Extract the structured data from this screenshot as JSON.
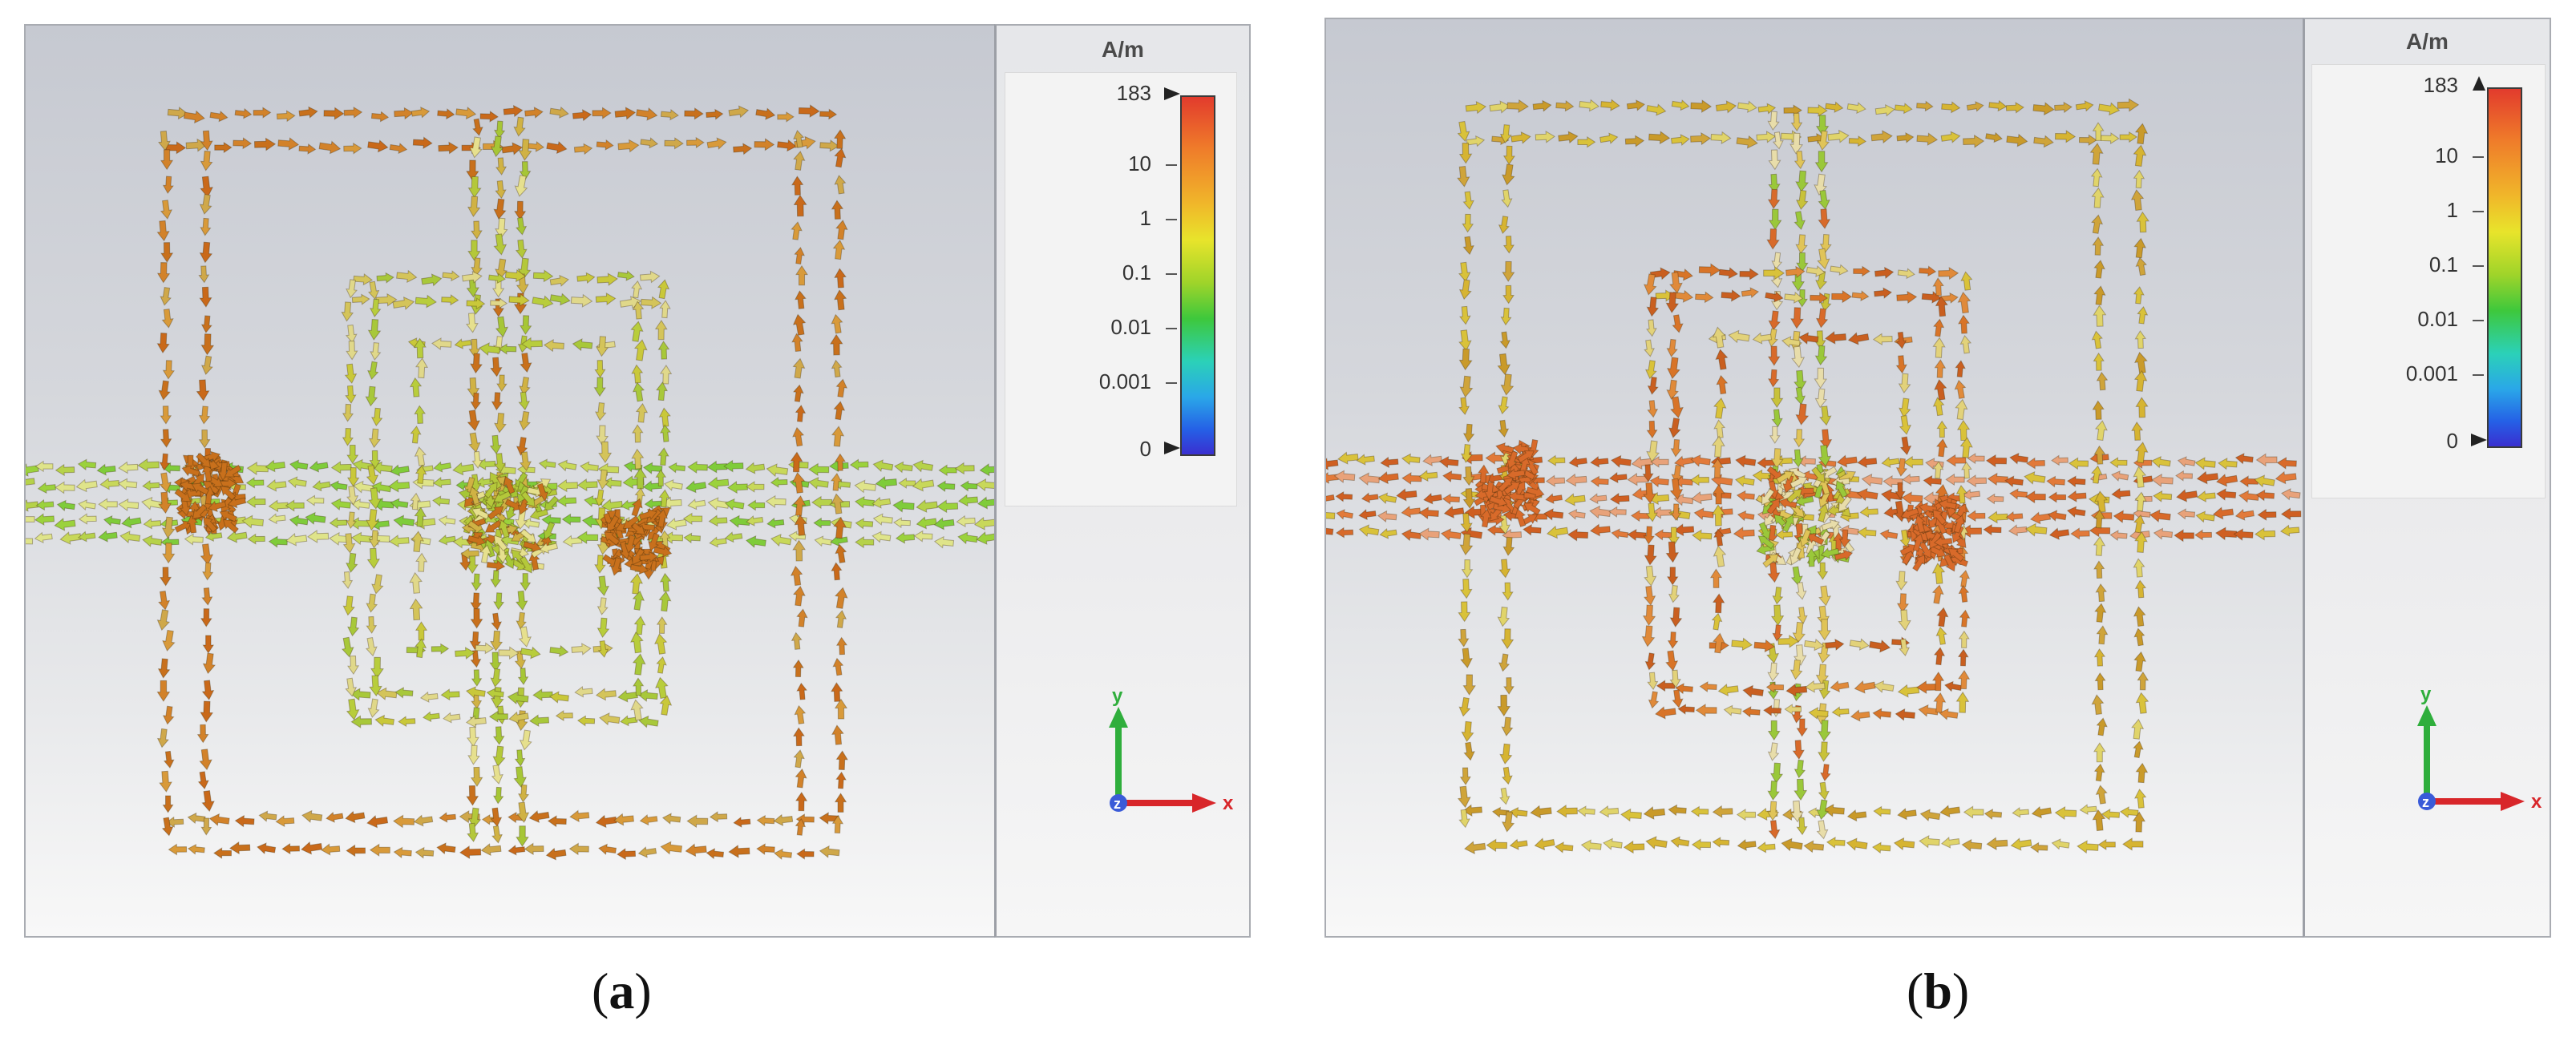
{
  "panels": [
    {
      "id": "a",
      "unit": "A/m",
      "scale_labels": [
        "183",
        "10",
        "1",
        "0.1",
        "0.01",
        "0.001",
        "0"
      ],
      "axis_labels": {
        "y": "y",
        "x": "x",
        "z": "z"
      },
      "caption_open": "(",
      "caption_letter": "a",
      "caption_close": ")"
    },
    {
      "id": "b",
      "unit": "A/m",
      "scale_labels": [
        "183",
        "10",
        "1",
        "0.1",
        "0.01",
        "0.001",
        "0"
      ],
      "axis_labels": {
        "y": "y",
        "x": "x",
        "z": "z"
      },
      "caption_open": "(",
      "caption_letter": "b",
      "caption_close": ")"
    }
  ],
  "colors": {
    "dominant_a": "#c8701c",
    "dominant_b": "#d9c23a",
    "axis_y": "#2fae3c",
    "axis_x": "#d8262a",
    "axis_z": "#3a5bd8"
  }
}
